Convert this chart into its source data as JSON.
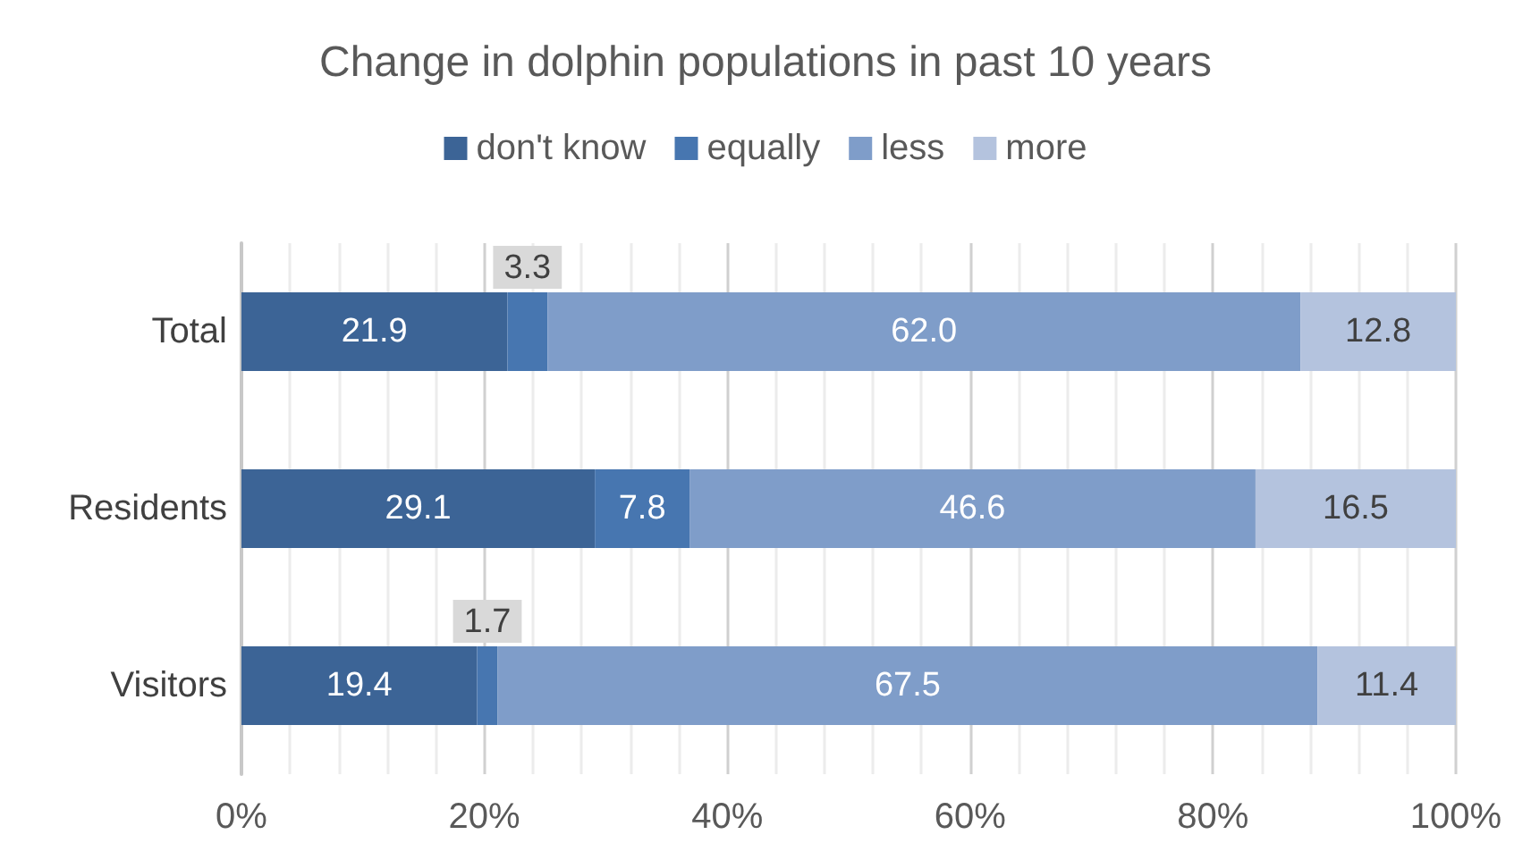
{
  "chart_data": {
    "type": "bar",
    "orientation": "horizontal",
    "stacked": true,
    "title": "Change in dolphin populations in past 10 years",
    "categories": [
      "Total",
      "Residents",
      "Visitors"
    ],
    "series": [
      {
        "name": "don't know",
        "color": "#3c6496",
        "values": [
          21.9,
          29.1,
          19.4
        ],
        "value_labels": [
          "21.9",
          "29.1",
          "19.4"
        ]
      },
      {
        "name": "equally",
        "color": "#4776b0",
        "values": [
          3.3,
          7.8,
          1.7
        ],
        "value_labels": [
          "3.3",
          "7.8",
          "1.7"
        ]
      },
      {
        "name": "less",
        "color": "#7f9dc9",
        "values": [
          62.0,
          46.6,
          67.5
        ],
        "value_labels": [
          "62.0",
          "46.6",
          "67.5"
        ]
      },
      {
        "name": "more",
        "color": "#b4c3de",
        "values": [
          12.8,
          16.5,
          11.4
        ],
        "value_labels": [
          "12.8",
          "16.5",
          "11.4"
        ]
      }
    ],
    "xlim": [
      0,
      100
    ],
    "xticks": [
      {
        "value": 0,
        "label": "0%"
      },
      {
        "value": 4,
        "label": null
      },
      {
        "value": 8,
        "label": null
      },
      {
        "value": 12,
        "label": null
      },
      {
        "value": 16,
        "label": null
      },
      {
        "value": 20,
        "label": "20%"
      },
      {
        "value": 24,
        "label": null
      },
      {
        "value": 28,
        "label": null
      },
      {
        "value": 32,
        "label": null
      },
      {
        "value": 36,
        "label": null
      },
      {
        "value": 40,
        "label": "40%"
      },
      {
        "value": 44,
        "label": null
      },
      {
        "value": 48,
        "label": null
      },
      {
        "value": 52,
        "label": null
      },
      {
        "value": 56,
        "label": null
      },
      {
        "value": 60,
        "label": "60%"
      },
      {
        "value": 64,
        "label": null
      },
      {
        "value": 68,
        "label": null
      },
      {
        "value": 72,
        "label": null
      },
      {
        "value": 76,
        "label": null
      },
      {
        "value": 80,
        "label": "80%"
      },
      {
        "value": 84,
        "label": null
      },
      {
        "value": 88,
        "label": null
      },
      {
        "value": 92,
        "label": null
      },
      {
        "value": 96,
        "label": null
      },
      {
        "value": 100,
        "label": "100%"
      }
    ],
    "grid": "x",
    "legend": "top"
  }
}
